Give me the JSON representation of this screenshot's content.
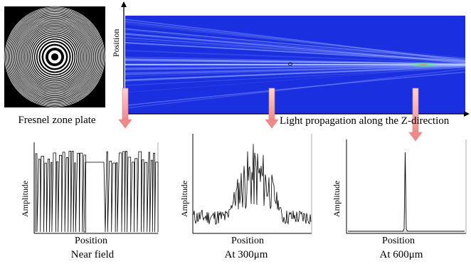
{
  "fresnel": {
    "caption": "Fresnel zone plate"
  },
  "propagation": {
    "y_axis_label": "Position",
    "x_axis_label": "Light propagation along the Z-direction"
  },
  "panels": [
    {
      "id": "near",
      "y_label": "Amplitude",
      "x_label": "Position",
      "caption": "Near field"
    },
    {
      "id": "300",
      "y_label": "Amplitude",
      "x_label": "Position",
      "caption": "At 300μm"
    },
    {
      "id": "600",
      "y_label": "Amplitude",
      "x_label": "Position",
      "caption": "At 600μm"
    }
  ],
  "colors": {
    "field_bg": "#1a2fe0",
    "arrow": "#f4a6a6",
    "arrow_edge": "#e07b7b"
  }
}
